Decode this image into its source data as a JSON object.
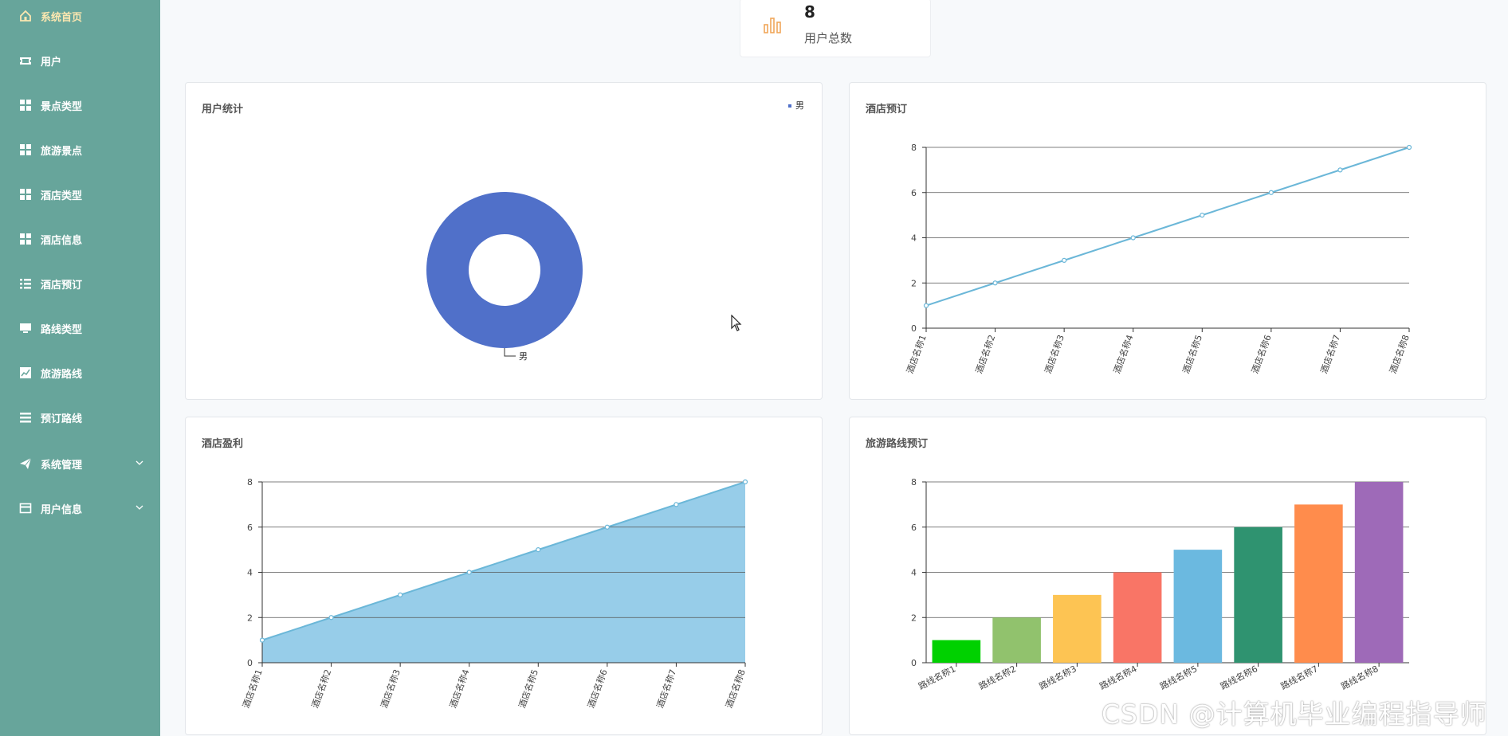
{
  "sidebar": {
    "items": [
      {
        "label": "系统首页",
        "icon": "home-icon",
        "active": true,
        "caret": false
      },
      {
        "label": "用户",
        "icon": "ticket-icon",
        "active": false,
        "caret": false
      },
      {
        "label": "景点类型",
        "icon": "grid-icon",
        "active": false,
        "caret": false
      },
      {
        "label": "旅游景点",
        "icon": "grid-icon",
        "active": false,
        "caret": false
      },
      {
        "label": "酒店类型",
        "icon": "grid-icon",
        "active": false,
        "caret": false
      },
      {
        "label": "酒店信息",
        "icon": "grid-icon",
        "active": false,
        "caret": false
      },
      {
        "label": "酒店预订",
        "icon": "list-icon",
        "active": false,
        "caret": false
      },
      {
        "label": "路线类型",
        "icon": "monitor-icon",
        "active": false,
        "caret": false
      },
      {
        "label": "旅游路线",
        "icon": "chart-icon",
        "active": false,
        "caret": false
      },
      {
        "label": "预订路线",
        "icon": "menu-icon",
        "active": false,
        "caret": false
      },
      {
        "label": "系统管理",
        "icon": "send-icon",
        "active": false,
        "caret": true
      },
      {
        "label": "用户信息",
        "icon": "card-icon",
        "active": false,
        "caret": true
      }
    ]
  },
  "stat": {
    "value": "8",
    "label": "用户总数",
    "icon": "bar-chart-icon",
    "icon_color": "#f0a65a"
  },
  "panels": {
    "user_stats": {
      "title": "用户统计"
    },
    "hotel_booking": {
      "title": "酒店预订"
    },
    "hotel_profit": {
      "title": "酒店盈利"
    },
    "route_booking": {
      "title": "旅游路线预订"
    }
  },
  "watermark": "CSDN @计算机毕业编程指导师",
  "chart_data": [
    {
      "type": "pie",
      "donut": true,
      "slices": [
        {
          "name": "男",
          "value": 8
        }
      ],
      "legend": [
        "男"
      ],
      "legend_position": "top-right",
      "color": "#5070c9"
    },
    {
      "type": "line",
      "categories": [
        "酒店名称1",
        "酒店名称2",
        "酒店名称3",
        "酒店名称4",
        "酒店名称5",
        "酒店名称6",
        "酒店名称7",
        "酒店名称8"
      ],
      "values": [
        1,
        2,
        3,
        4,
        5,
        6,
        7,
        8
      ],
      "ylim": [
        0,
        8
      ],
      "yticks": [
        0,
        2,
        4,
        6,
        8
      ],
      "grid": true,
      "color": "#6bb7d8"
    },
    {
      "type": "area",
      "categories": [
        "酒店名称1",
        "酒店名称2",
        "酒店名称3",
        "酒店名称4",
        "酒店名称5",
        "酒店名称6",
        "酒店名称7",
        "酒店名称8"
      ],
      "values": [
        1,
        2,
        3,
        4,
        5,
        6,
        7,
        8
      ],
      "ylim": [
        0,
        8
      ],
      "yticks": [
        0,
        2,
        4,
        6,
        8
      ],
      "grid": true,
      "color": "#6bb7d8",
      "fill": "#97cde9"
    },
    {
      "type": "bar",
      "categories": [
        "路线名称1",
        "路线名称2",
        "路线名称3",
        "路线名称4",
        "路线名称5",
        "路线名称6",
        "路线名称7",
        "路线名称8"
      ],
      "values": [
        1,
        2,
        3,
        4,
        5,
        6,
        7,
        8
      ],
      "ylim": [
        0,
        8
      ],
      "yticks": [
        0,
        2,
        4,
        6,
        8
      ],
      "grid": true,
      "colors": [
        "#00d100",
        "#91c26d",
        "#fdc453",
        "#f97566",
        "#6bb9e0",
        "#2f9370",
        "#ff8c4c",
        "#9e6ab8"
      ]
    }
  ]
}
